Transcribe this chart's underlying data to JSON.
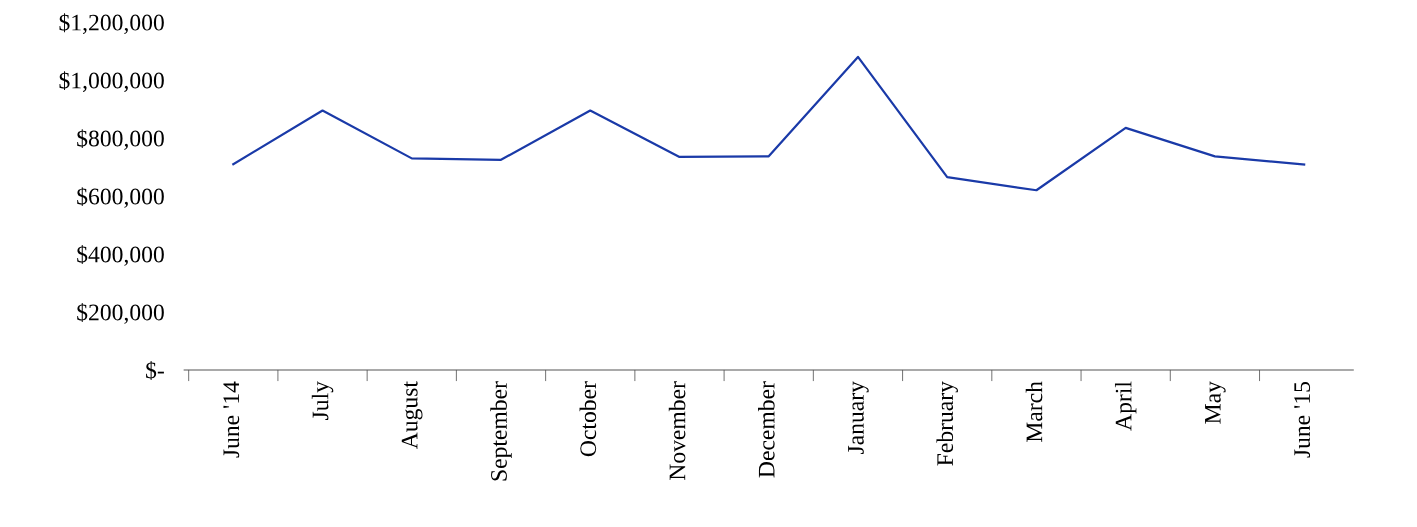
{
  "chart_data": {
    "type": "line",
    "categories": [
      "June '14",
      "July",
      "August",
      "September",
      "October",
      "November",
      "December",
      "January",
      "February",
      "March",
      "April",
      "May",
      "June '15"
    ],
    "series": [
      {
        "color": "#1a3aa8",
        "values": [
          710000,
          895000,
          730000,
          725000,
          895000,
          735000,
          737000,
          1080000,
          665000,
          620000,
          835000,
          737000,
          709000
        ]
      }
    ],
    "ylim": [
      0,
      1200000
    ],
    "yticks": [
      {
        "value": 0,
        "label": "$-"
      },
      {
        "value": 200000,
        "label": "$200,000"
      },
      {
        "value": 400000,
        "label": "$400,000"
      },
      {
        "value": 600000,
        "label": "$600,000"
      },
      {
        "value": 800000,
        "label": "$800,000"
      },
      {
        "value": 1000000,
        "label": "$1,000,000"
      },
      {
        "value": 1200000,
        "label": "$1,200,000"
      }
    ],
    "grid": false,
    "legend": false,
    "marker": "none",
    "line_style": "solid"
  }
}
